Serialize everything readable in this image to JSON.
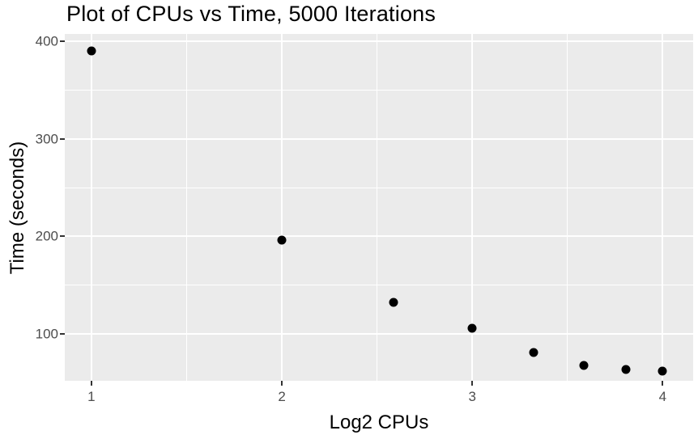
{
  "chart_data": {
    "type": "scatter",
    "title": "Plot of CPUs vs Time, 5000 Iterations",
    "xlabel": "Log2 CPUs",
    "ylabel": "Time (seconds)",
    "x": [
      1,
      2,
      2.585,
      3,
      3.322,
      3.585,
      3.807,
      4
    ],
    "y": [
      390,
      196,
      132,
      106,
      81,
      68,
      64,
      62
    ],
    "x_ticks": [
      1,
      2,
      3,
      4
    ],
    "y_ticks": [
      100,
      200,
      300,
      400
    ],
    "x_minor_ticks": [
      1.5,
      2.5,
      3.5
    ],
    "y_minor_ticks": [
      150,
      250,
      350
    ],
    "xlim": [
      0.86,
      4.16
    ],
    "ylim": [
      52,
      407.5
    ],
    "grid": true,
    "legend": "none",
    "style": "ggplot2-grey",
    "colors": {
      "panel_background": "#EBEBEB",
      "gridline": "#FFFFFF",
      "point": "#000000",
      "tick_label": "#4D4D4D",
      "tick_mark": "#333333",
      "title_text": "#000000",
      "page_background": "#FFFFFF"
    }
  }
}
